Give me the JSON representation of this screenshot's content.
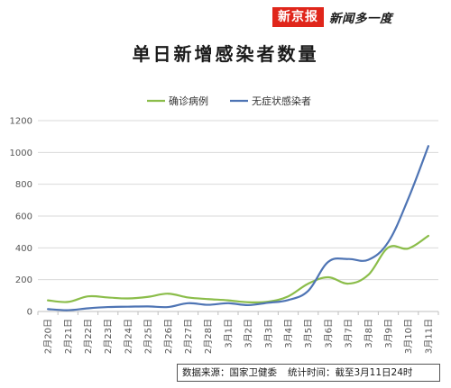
{
  "brand": {
    "logo_text": "新京报",
    "slogan": "新闻多一度"
  },
  "footer": {
    "source": "数据来源：国家卫健委",
    "stat_time": "统计时间：截至3月11日24时"
  },
  "colors": {
    "confirmed": "#8bbd4a",
    "asymptomatic": "#4e74b4",
    "grid": "#d9d9d9",
    "axis": "#bfbfbf"
  },
  "chart_data": {
    "type": "line",
    "title": "单日新增感染者数量",
    "xlabel": "",
    "ylabel": "",
    "ylim": [
      0,
      1200
    ],
    "yticks": [
      0,
      200,
      400,
      600,
      800,
      1000,
      1200
    ],
    "grid": true,
    "legend": "top-center",
    "categories": [
      "2月20日",
      "2月21日",
      "2月22日",
      "2月23日",
      "2月24日",
      "2月25日",
      "2月26日",
      "2月27日",
      "2月28日",
      "3月1日",
      "3月2日",
      "3月3日",
      "3月4日",
      "3月5日",
      "3月6日",
      "3月7日",
      "3月8日",
      "3月9日",
      "3月10日",
      "3月11日"
    ],
    "series": [
      {
        "name": "确诊病例",
        "color": "#8bbd4a",
        "values": [
          70,
          60,
          95,
          88,
          82,
          92,
          112,
          88,
          78,
          70,
          58,
          62,
          95,
          175,
          215,
          175,
          230,
          402,
          396,
          476
        ]
      },
      {
        "name": "无症状感染者",
        "color": "#4e74b4",
        "values": [
          15,
          8,
          20,
          28,
          30,
          32,
          28,
          52,
          42,
          52,
          40,
          55,
          72,
          130,
          312,
          330,
          325,
          437,
          710,
          1040
        ]
      }
    ]
  }
}
